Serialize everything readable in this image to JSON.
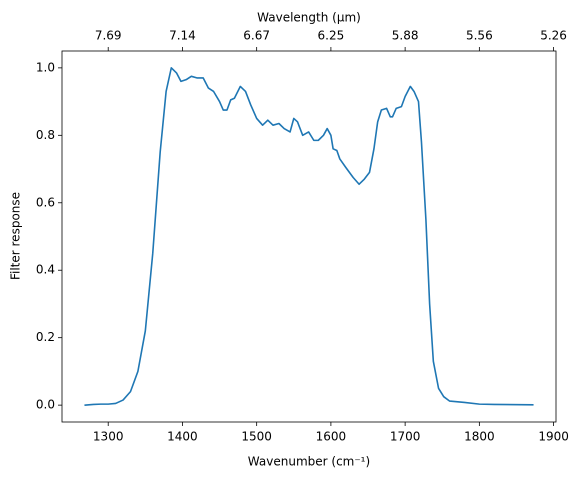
{
  "chart_data": {
    "type": "line",
    "xlabel": "Wavenumber (cm⁻¹)",
    "ylabel": "Filter response",
    "x2label": "Wavelength (μm)",
    "x": [
      1268,
      1280,
      1290,
      1300,
      1310,
      1320,
      1330,
      1340,
      1350,
      1360,
      1370,
      1378,
      1385,
      1392,
      1398,
      1405,
      1412,
      1420,
      1428,
      1435,
      1442,
      1450,
      1455,
      1460,
      1465,
      1470,
      1478,
      1485,
      1492,
      1500,
      1508,
      1515,
      1522,
      1530,
      1537,
      1545,
      1550,
      1555,
      1562,
      1570,
      1577,
      1583,
      1590,
      1595,
      1600,
      1603,
      1608,
      1612,
      1620,
      1630,
      1638,
      1645,
      1652,
      1658,
      1663,
      1668,
      1675,
      1680,
      1683,
      1688,
      1695,
      1700,
      1707,
      1712,
      1718,
      1722,
      1728,
      1733,
      1738,
      1745,
      1752,
      1760,
      1780,
      1800,
      1820,
      1873
    ],
    "series": [
      {
        "color": "#1f77b4",
        "values": [
          0.0,
          0.002,
          0.003,
          0.003,
          0.005,
          0.015,
          0.04,
          0.1,
          0.22,
          0.45,
          0.75,
          0.93,
          1.0,
          0.985,
          0.96,
          0.965,
          0.975,
          0.97,
          0.97,
          0.94,
          0.93,
          0.9,
          0.875,
          0.875,
          0.905,
          0.91,
          0.945,
          0.93,
          0.89,
          0.85,
          0.83,
          0.845,
          0.83,
          0.835,
          0.82,
          0.81,
          0.85,
          0.84,
          0.8,
          0.81,
          0.785,
          0.785,
          0.8,
          0.82,
          0.8,
          0.76,
          0.755,
          0.73,
          0.705,
          0.675,
          0.655,
          0.67,
          0.69,
          0.76,
          0.84,
          0.875,
          0.88,
          0.855,
          0.855,
          0.88,
          0.885,
          0.915,
          0.945,
          0.93,
          0.9,
          0.78,
          0.55,
          0.3,
          0.13,
          0.05,
          0.025,
          0.012,
          0.008,
          0.003,
          0.002,
          0.001
        ]
      }
    ],
    "xlim": [
      1237.75,
      1903.25
    ],
    "ylim": [
      -0.05,
      1.05
    ],
    "xticks": [
      1300,
      1400,
      1500,
      1600,
      1700,
      1800,
      1900
    ],
    "x2ticks": [
      {
        "value": 1300,
        "label": "7.69"
      },
      {
        "value": 1400,
        "label": "7.14"
      },
      {
        "value": 1500,
        "label": "6.67"
      },
      {
        "value": 1600,
        "label": "6.25"
      },
      {
        "value": 1700,
        "label": "5.88"
      },
      {
        "value": 1800,
        "label": "5.56"
      },
      {
        "value": 1900,
        "label": "5.26"
      }
    ],
    "yticks": [
      {
        "value": 0,
        "label": "0.0"
      },
      0.2,
      0.4,
      0.6,
      0.8,
      {
        "value": 1,
        "label": "1.0"
      }
    ],
    "grid": false
  }
}
